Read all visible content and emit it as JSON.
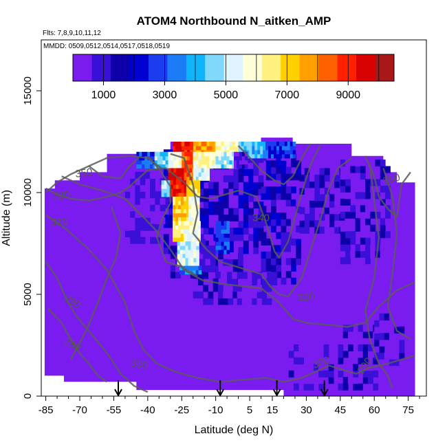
{
  "chart_data": {
    "type": "heatmap",
    "title": "ATOM4 Northbound N_aitken_AMP",
    "subtitle_flights": "Flts: 7,8,9,10,11,12",
    "subtitle_dates": "MMDD: 0509,0512,0514,0517,0518,0519",
    "xlabel": "Latitude (deg N)",
    "ylabel": "Altitude (m)",
    "xlim": [
      -87,
      83
    ],
    "ylim": [
      0,
      17500
    ],
    "x_ticks": [
      "-85",
      "-70",
      "-55",
      "-40",
      "-25",
      "-10",
      "5",
      "15",
      "30",
      "45",
      "60",
      "75"
    ],
    "x_tick_values": [
      -85,
      -70,
      -55,
      -40,
      -25,
      -10,
      5,
      15,
      30,
      45,
      60,
      75
    ],
    "y_ticks": [
      "0",
      "5000",
      "10000",
      "15000"
    ],
    "y_tick_values": [
      0,
      5000,
      10000,
      15000
    ],
    "colorbar": {
      "range": [
        0,
        10500
      ],
      "tick_labels": [
        "1000",
        "3000",
        "5000",
        "7000",
        "9000"
      ],
      "tick_values": [
        1000,
        3000,
        5000,
        7000,
        9000
      ],
      "colors": [
        "#7a1cf0",
        "#3a10d8",
        "#0d00a8",
        "#0000d0",
        "#1c3cf0",
        "#1c7cf8",
        "#10b4f8",
        "#80d8fc",
        "#e0f4ff",
        "#ffffd8",
        "#fff080",
        "#ffd000",
        "#ffa000",
        "#ff6000",
        "#ff2000",
        "#d80000",
        "#a81818"
      ]
    },
    "isentrope_labels": [
      "350",
      "330",
      "310",
      "290",
      "280",
      "300",
      "340",
      "320",
      "300",
      "290",
      "350"
    ],
    "flight_arrow_latitudes": [
      -53,
      -8,
      17,
      38
    ],
    "background_color": "#7a1cf0",
    "contour_color": "#5a5a5a"
  }
}
